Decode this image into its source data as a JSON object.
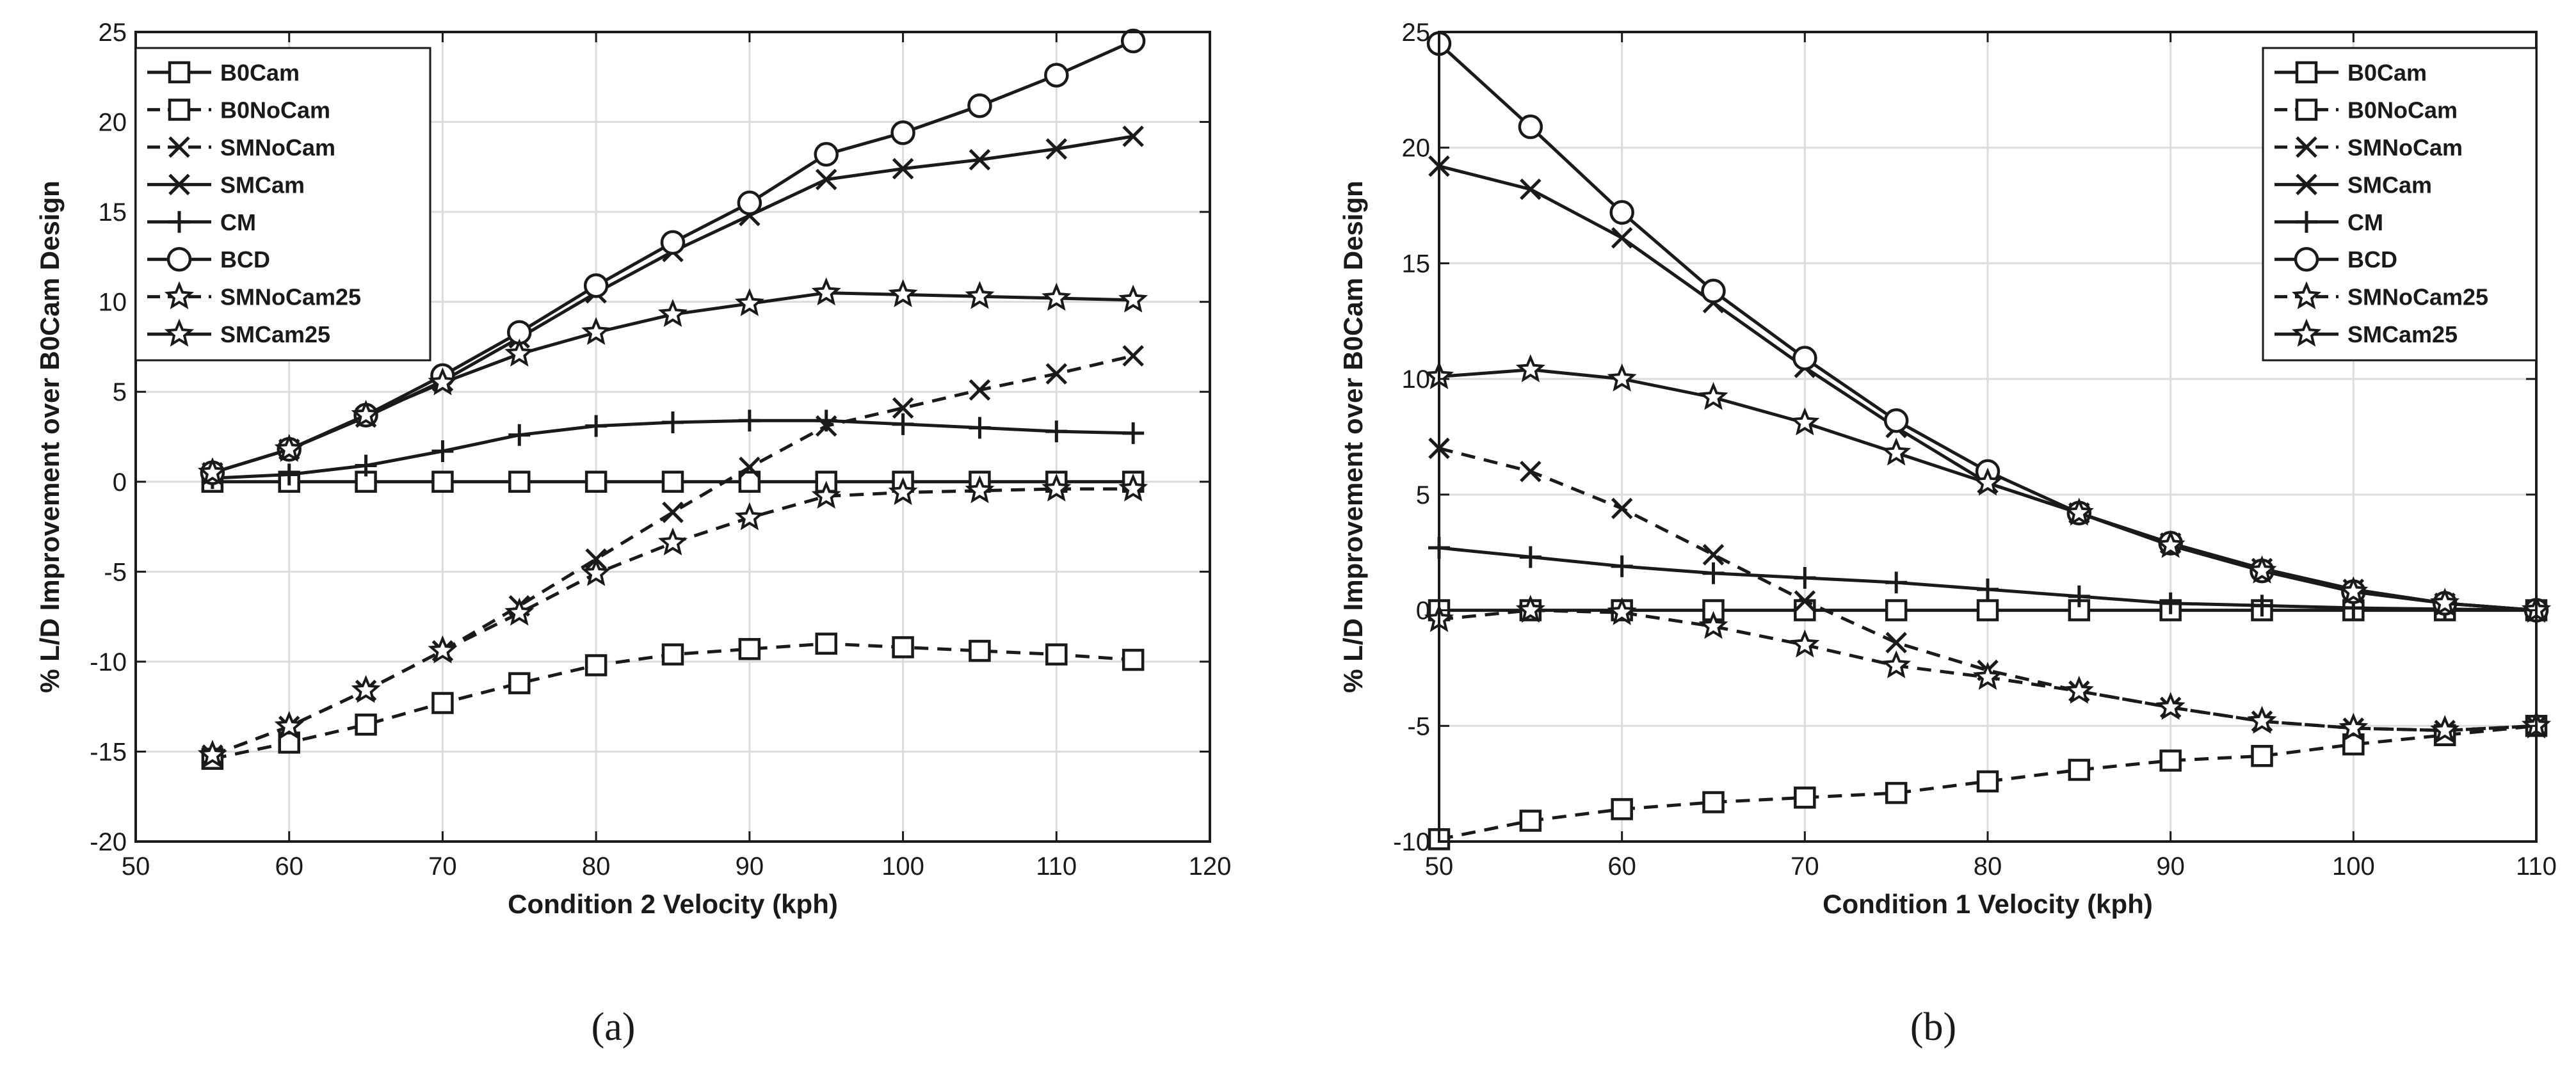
{
  "chart_data": [
    {
      "type": "line",
      "panel_label": "(a)",
      "xlabel": "Condition 2 Velocity (kph)",
      "ylabel": "% L/D Improvement over B0Cam Design",
      "xlim": [
        50,
        120
      ],
      "ylim": [
        -20,
        25
      ],
      "x_ticks": [
        50,
        60,
        70,
        80,
        90,
        100,
        110,
        120
      ],
      "y_ticks": [
        -20,
        -15,
        -10,
        -5,
        0,
        5,
        10,
        15,
        20,
        25
      ],
      "grid": true,
      "legend_position": "top-left",
      "x": [
        55,
        60,
        65,
        70,
        75,
        80,
        85,
        90,
        95,
        100,
        105,
        110,
        115
      ],
      "series": [
        {
          "name": "B0Cam",
          "style": "solid",
          "marker": "square",
          "values": [
            0,
            0,
            0,
            0,
            0,
            0,
            0,
            0,
            0,
            0,
            0,
            0,
            0
          ]
        },
        {
          "name": "B0NoCam",
          "style": "dashed",
          "marker": "square",
          "values": [
            -15.4,
            -14.5,
            -13.5,
            -12.3,
            -11.2,
            -10.2,
            -9.6,
            -9.3,
            -9.0,
            -9.2,
            -9.4,
            -9.6,
            -9.9
          ]
        },
        {
          "name": "SMNoCam",
          "style": "dashed",
          "marker": "x",
          "values": [
            -15.2,
            -13.6,
            -11.6,
            -9.4,
            -6.9,
            -4.3,
            -1.7,
            0.8,
            3.1,
            4.1,
            5.1,
            6.0,
            7.0
          ]
        },
        {
          "name": "SMCam",
          "style": "solid",
          "marker": "x",
          "values": [
            0.5,
            1.8,
            3.6,
            5.6,
            8.0,
            10.5,
            12.8,
            14.8,
            16.8,
            17.4,
            17.9,
            18.5,
            19.2
          ]
        },
        {
          "name": "CM",
          "style": "solid",
          "marker": "plus",
          "values": [
            0.2,
            0.4,
            0.9,
            1.7,
            2.6,
            3.1,
            3.3,
            3.4,
            3.4,
            3.2,
            3.0,
            2.8,
            2.7
          ]
        },
        {
          "name": "BCD",
          "style": "solid",
          "marker": "circle",
          "values": [
            0.5,
            1.8,
            3.7,
            5.9,
            8.3,
            10.9,
            13.3,
            15.5,
            18.2,
            19.4,
            20.9,
            22.6,
            24.5
          ]
        },
        {
          "name": "SMNoCam25",
          "style": "dashed",
          "marker": "star",
          "values": [
            -15.2,
            -13.6,
            -11.6,
            -9.4,
            -7.3,
            -5.1,
            -3.4,
            -2.0,
            -0.8,
            -0.6,
            -0.5,
            -0.4,
            -0.4
          ]
        },
        {
          "name": "SMCam25",
          "style": "solid",
          "marker": "star",
          "values": [
            0.5,
            1.8,
            3.7,
            5.5,
            7.1,
            8.3,
            9.3,
            9.9,
            10.5,
            10.4,
            10.3,
            10.2,
            10.1
          ]
        }
      ]
    },
    {
      "type": "line",
      "panel_label": "(b)",
      "xlabel": "Condition 1 Velocity (kph)",
      "ylabel": "% L/D Improvement over B0Cam Design",
      "xlim": [
        50,
        110
      ],
      "ylim": [
        -10,
        25
      ],
      "x_ticks": [
        50,
        60,
        70,
        80,
        90,
        100,
        110
      ],
      "y_ticks": [
        -10,
        -5,
        0,
        5,
        10,
        15,
        20,
        25
      ],
      "grid": true,
      "legend_position": "top-right",
      "x": [
        50,
        55,
        60,
        65,
        70,
        75,
        80,
        85,
        90,
        95,
        100,
        105,
        110
      ],
      "series": [
        {
          "name": "B0Cam",
          "style": "solid",
          "marker": "square",
          "values": [
            0,
            0,
            0,
            0,
            0,
            0,
            0,
            0,
            0,
            0,
            0,
            0,
            0
          ]
        },
        {
          "name": "B0NoCam",
          "style": "dashed",
          "marker": "square",
          "values": [
            -9.9,
            -9.1,
            -8.6,
            -8.3,
            -8.1,
            -7.9,
            -7.4,
            -6.9,
            -6.5,
            -6.3,
            -5.8,
            -5.4,
            -5.0
          ]
        },
        {
          "name": "SMNoCam",
          "style": "dashed",
          "marker": "x",
          "values": [
            7.0,
            6.0,
            4.4,
            2.4,
            0.4,
            -1.4,
            -2.6,
            -3.5,
            -4.2,
            -4.8,
            -5.1,
            -5.2,
            -5.0
          ]
        },
        {
          "name": "SMCam",
          "style": "solid",
          "marker": "x",
          "values": [
            19.2,
            18.2,
            16.1,
            13.3,
            10.5,
            7.9,
            5.5,
            4.2,
            2.9,
            1.8,
            0.9,
            0.3,
            0.0
          ]
        },
        {
          "name": "CM",
          "style": "solid",
          "marker": "plus",
          "values": [
            2.7,
            2.3,
            1.9,
            1.6,
            1.4,
            1.2,
            0.9,
            0.6,
            0.3,
            0.2,
            0.1,
            0.05,
            0.0
          ]
        },
        {
          "name": "BCD",
          "style": "solid",
          "marker": "circle",
          "values": [
            24.5,
            20.9,
            17.2,
            13.8,
            10.9,
            8.2,
            6.0,
            4.2,
            2.9,
            1.7,
            0.8,
            0.3,
            0.0
          ]
        },
        {
          "name": "SMNoCam25",
          "style": "dashed",
          "marker": "star",
          "values": [
            -0.4,
            0.0,
            -0.1,
            -0.7,
            -1.5,
            -2.4,
            -2.9,
            -3.5,
            -4.2,
            -4.8,
            -5.1,
            -5.2,
            -5.0
          ]
        },
        {
          "name": "SMCam25",
          "style": "solid",
          "marker": "star",
          "values": [
            10.1,
            10.4,
            10.0,
            9.2,
            8.1,
            6.8,
            5.5,
            4.2,
            2.8,
            1.7,
            0.8,
            0.3,
            0.0
          ]
        }
      ]
    }
  ]
}
